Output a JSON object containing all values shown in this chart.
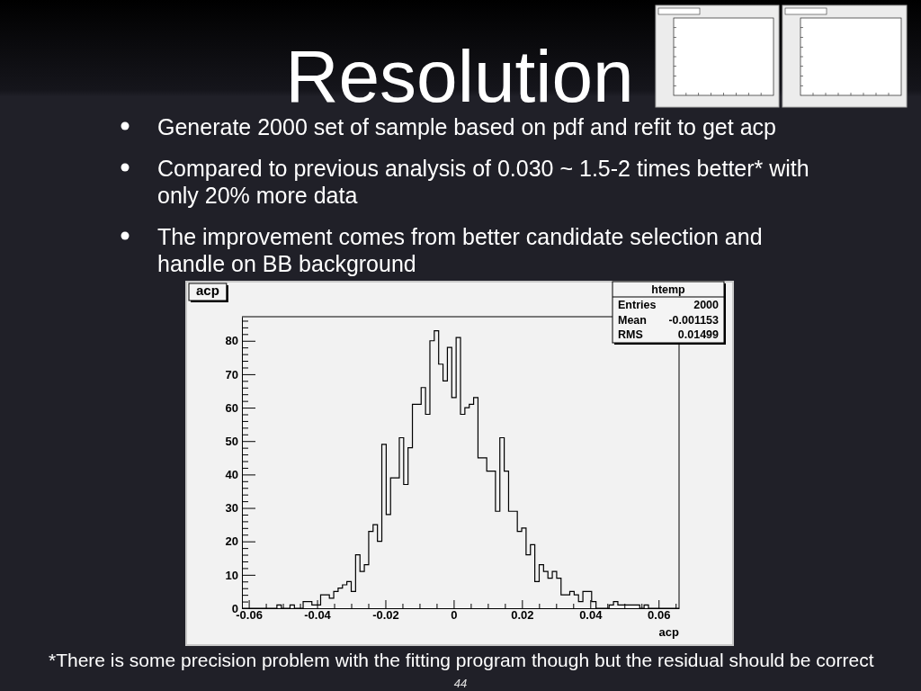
{
  "chart_data": {
    "type": "histogram",
    "title": "Resolution",
    "subtitle": "acp",
    "xlabel": "acp",
    "annotations": [
      "Generate 2000 set of sample based on pdf and refit to get acp",
      "Compared to previous analysis of 0.030 ~ 1.5-2 times better* with only 20% more data",
      "The improvement comes from better candidate selection and handle on BB background",
      "htemp",
      "Entries",
      "2000",
      "Mean",
      "-0.001153",
      "RMS",
      "0.01499",
      "*There is some precision problem with the fitting program though but the residual should be correct",
      "44"
    ],
    "bins": [
      -0.062,
      -0.06072,
      -0.05944,
      -0.05816,
      -0.05688,
      -0.0556,
      -0.05432,
      -0.05304,
      -0.05176,
      -0.05048,
      -0.0492,
      -0.04792,
      -0.04664,
      -0.04536,
      -0.04408,
      -0.0428,
      -0.04152,
      -0.04024,
      -0.03896,
      -0.03768,
      -0.0364,
      -0.03512,
      -0.03384,
      -0.03256,
      -0.03128,
      -0.03,
      -0.02872,
      -0.02744,
      -0.02616,
      -0.02488,
      -0.0236,
      -0.02232,
      -0.02104,
      -0.01976,
      -0.01848,
      -0.0172,
      -0.01592,
      -0.01464,
      -0.01336,
      -0.01208,
      -0.0108,
      -0.00952,
      -0.00824,
      -0.00696,
      -0.00568,
      -0.0044,
      -0.00312,
      -0.00184,
      -0.00056,
      0.00072,
      0.002,
      0.00328,
      0.00456,
      0.00584,
      0.00712,
      0.0084,
      0.00968,
      0.01096,
      0.01224,
      0.01352,
      0.0148,
      0.01608,
      0.01736,
      0.01864,
      0.01992,
      0.0212,
      0.02248,
      0.02376,
      0.02504,
      0.02632,
      0.0276,
      0.02888,
      0.03016,
      0.03144,
      0.03272,
      0.034,
      0.03528,
      0.03656,
      0.03784,
      0.03912,
      0.0404,
      0.04168,
      0.04296,
      0.04424,
      0.04552,
      0.0468,
      0.04808,
      0.04936,
      0.05064,
      0.05192,
      0.0532,
      0.05448,
      0.05576,
      0.05704,
      0.05832,
      0.0596,
      0.06088,
      0.06216,
      0.06344,
      0.06472,
      0.066
    ],
    "values": [
      0,
      0,
      0,
      0,
      0,
      0,
      0,
      0,
      1,
      0,
      0,
      1,
      0,
      0,
      2,
      2,
      1,
      1,
      4,
      4,
      3,
      5,
      6,
      7,
      8,
      5,
      16,
      11,
      13,
      23,
      25,
      20,
      49,
      28,
      39,
      39,
      51,
      37,
      48,
      61,
      61,
      66,
      58,
      80,
      83,
      73,
      68,
      78,
      63,
      81,
      58,
      60,
      61,
      63,
      45,
      45,
      41,
      41,
      29,
      51,
      41,
      29,
      29,
      23,
      24,
      16,
      19,
      8,
      13,
      11,
      9,
      11,
      9,
      4,
      4,
      5,
      4,
      2,
      5,
      5,
      2,
      0,
      0,
      0,
      1,
      2,
      1,
      1,
      1,
      1,
      1,
      0,
      1,
      0,
      0,
      0,
      0,
      0,
      0,
      0
    ],
    "color": "#000000",
    "xlim": [
      -0.062,
      0.066
    ],
    "ylim": [
      0,
      87.2
    ],
    "xticks": [
      -0.06,
      {
        "value": -0.055,
        "label": null
      },
      {
        "value": -0.05,
        "label": null
      },
      {
        "value": -0.045,
        "label": null
      },
      -0.04,
      {
        "value": -0.035,
        "label": null
      },
      {
        "value": -0.03,
        "label": null
      },
      {
        "value": -0.025,
        "label": null
      },
      -0.02,
      {
        "value": -0.015,
        "label": null
      },
      {
        "value": -0.01,
        "label": null
      },
      {
        "value": -0.005,
        "label": null
      },
      0,
      {
        "value": 0.005,
        "label": null
      },
      {
        "value": 0.01,
        "label": null
      },
      {
        "value": 0.015,
        "label": null
      },
      0.02,
      {
        "value": 0.025,
        "label": null
      },
      {
        "value": 0.03,
        "label": null
      },
      {
        "value": 0.035,
        "label": null
      },
      0.04,
      {
        "value": 0.045,
        "label": null
      },
      {
        "value": 0.05,
        "label": null
      },
      {
        "value": 0.055,
        "label": null
      },
      0.06,
      {
        "value": 0.065,
        "label": null
      }
    ],
    "yticks": [
      0,
      {
        "value": 2,
        "label": null
      },
      {
        "value": 4,
        "label": null
      },
      {
        "value": 6,
        "label": null
      },
      {
        "value": 8,
        "label": null
      },
      10,
      {
        "value": 12,
        "label": null
      },
      {
        "value": 14,
        "label": null
      },
      {
        "value": 16,
        "label": null
      },
      {
        "value": 18,
        "label": null
      },
      20,
      {
        "value": 22,
        "label": null
      },
      {
        "value": 24,
        "label": null
      },
      {
        "value": 26,
        "label": null
      },
      {
        "value": 28,
        "label": null
      },
      30,
      {
        "value": 32,
        "label": null
      },
      {
        "value": 34,
        "label": null
      },
      {
        "value": 36,
        "label": null
      },
      {
        "value": 38,
        "label": null
      },
      40,
      {
        "value": 42,
        "label": null
      },
      {
        "value": 44,
        "label": null
      },
      {
        "value": 46,
        "label": null
      },
      {
        "value": 48,
        "label": null
      },
      50,
      {
        "value": 52,
        "label": null
      },
      {
        "value": 54,
        "label": null
      },
      {
        "value": 56,
        "label": null
      },
      {
        "value": 58,
        "label": null
      },
      60,
      {
        "value": 62,
        "label": null
      },
      {
        "value": 64,
        "label": null
      },
      {
        "value": 66,
        "label": null
      },
      {
        "value": 68,
        "label": null
      },
      70,
      {
        "value": 72,
        "label": null
      },
      {
        "value": 74,
        "label": null
      },
      {
        "value": 76,
        "label": null
      },
      {
        "value": 78,
        "label": null
      },
      80,
      {
        "value": 82,
        "label": null
      },
      {
        "value": 84,
        "label": null
      },
      {
        "value": 86,
        "label": null
      }
    ]
  }
}
